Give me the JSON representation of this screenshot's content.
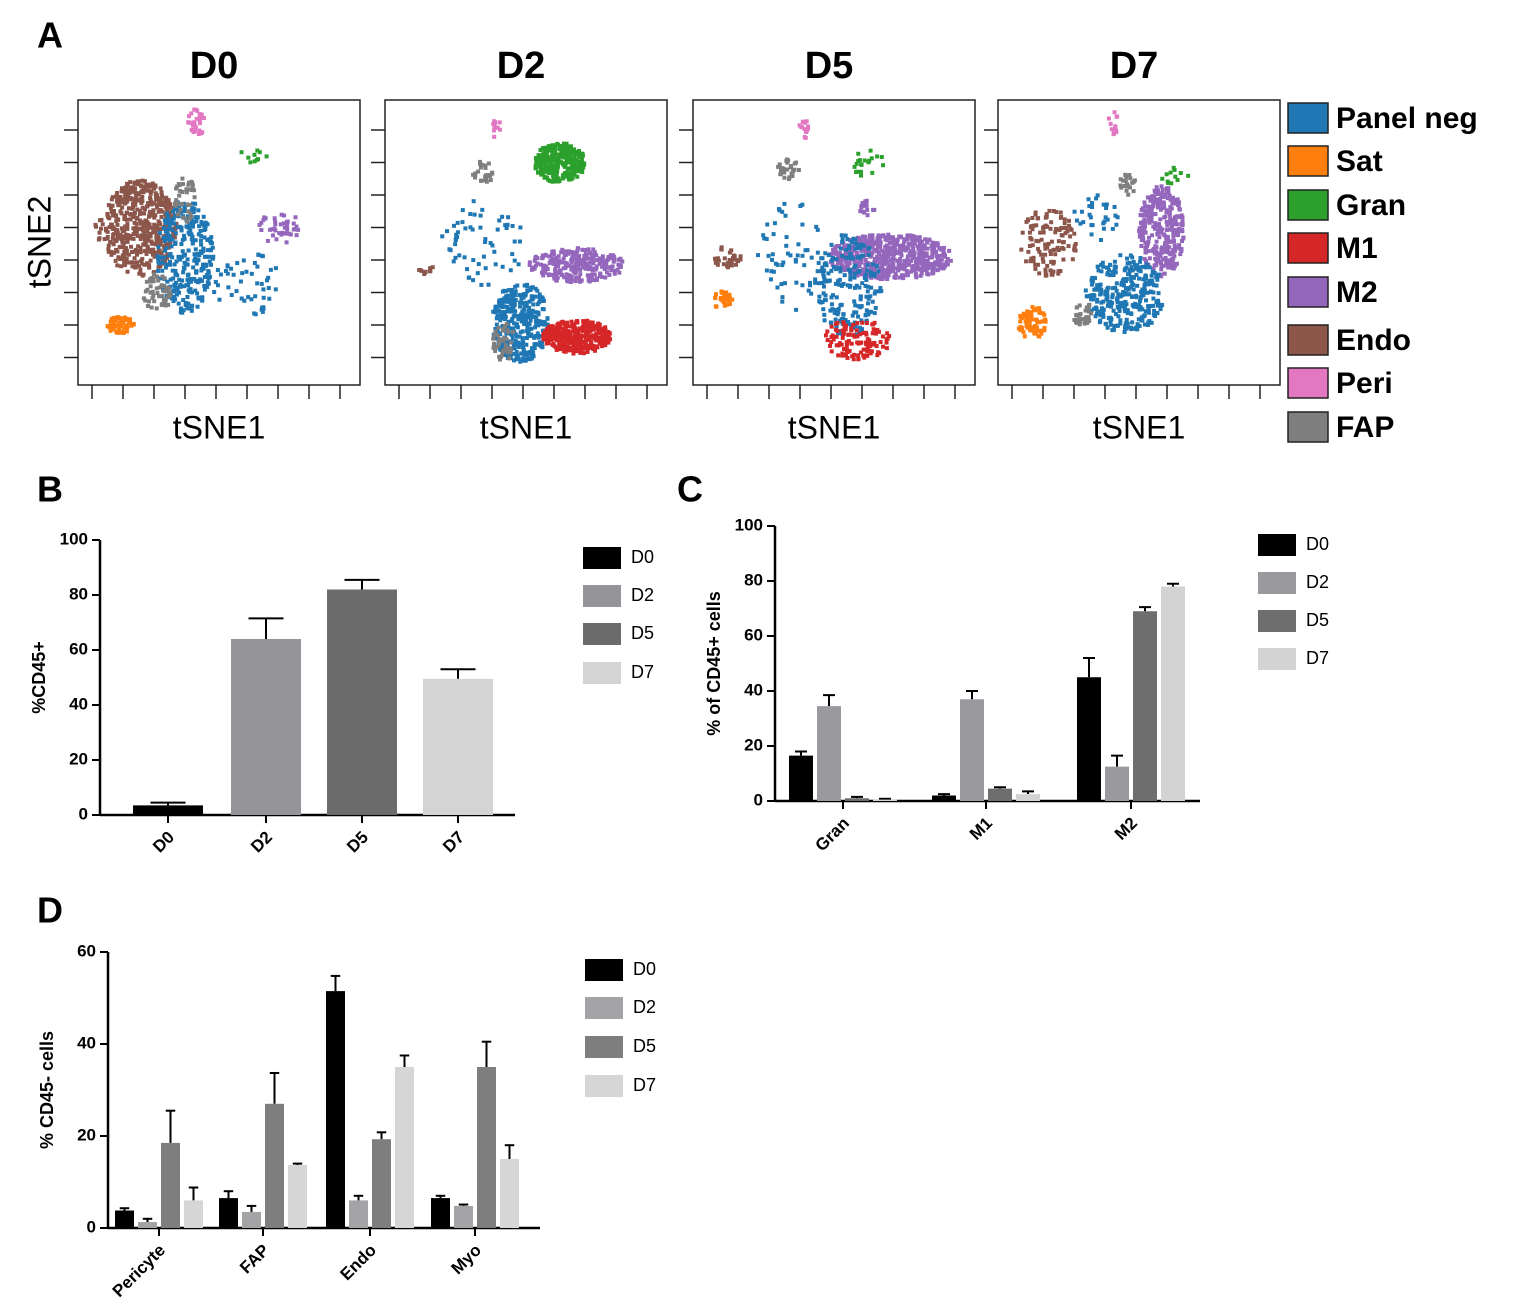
{
  "chart_data": [
    {
      "type": "tsne",
      "panel_label": "A",
      "panels": [
        "D0",
        "D2",
        "D5",
        "D7"
      ],
      "xlabel": "tSNE1",
      "ylabel": "tSNE2",
      "series": [
        {
          "name": "Panel neg",
          "color": "#1f77b4"
        },
        {
          "name": "Sat",
          "color": "#ff7f0e"
        },
        {
          "name": "Gran",
          "color": "#2ca02c"
        },
        {
          "name": "M1",
          "color": "#d62728"
        },
        {
          "name": "M2",
          "color": "#9467bd"
        },
        {
          "name": "Endo",
          "color": "#8c564b"
        },
        {
          "name": "Peri",
          "color": "#e377c2"
        },
        {
          "name": "FAP",
          "color": "#7f7f7f"
        }
      ]
    },
    {
      "type": "bar",
      "panel_label": "B",
      "ylabel": "%CD45+",
      "categories": [
        "D0",
        "D2",
        "D5",
        "D7"
      ],
      "values": [
        3.5,
        64,
        82,
        49.5
      ],
      "errors": [
        1,
        7.5,
        3.5,
        3.5
      ],
      "colors": [
        "#000000",
        "#959599",
        "#6b6b6b",
        "#d4d4d4"
      ],
      "ylim": [
        0,
        100
      ],
      "yticks": [
        0,
        20,
        40,
        60,
        80,
        100
      ]
    },
    {
      "type": "grouped_bar",
      "panel_label": "C",
      "ylabel": "% of CD45+ cells",
      "categories": [
        "Gran",
        "M1",
        "M2"
      ],
      "series": [
        {
          "name": "D0",
          "color": "#000000",
          "values": [
            16.5,
            2,
            45
          ],
          "errors": [
            1.5,
            0.5,
            7
          ]
        },
        {
          "name": "D2",
          "color": "#9a9a9e",
          "values": [
            34.5,
            37,
            12.5
          ],
          "errors": [
            4,
            3,
            4
          ]
        },
        {
          "name": "D5",
          "color": "#6e6e6e",
          "values": [
            1,
            4.5,
            69
          ],
          "errors": [
            0.5,
            0.5,
            1.5
          ]
        },
        {
          "name": "D7",
          "color": "#d3d3d3",
          "values": [
            0.5,
            2.5,
            78
          ],
          "errors": [
            0.3,
            1,
            1
          ]
        }
      ],
      "ylim": [
        0,
        100
      ],
      "yticks": [
        0,
        20,
        40,
        60,
        80,
        100
      ]
    },
    {
      "type": "grouped_bar",
      "panel_label": "D",
      "ylabel": "% CD45- cells",
      "categories": [
        "Pericyte",
        "FAP",
        "Endo",
        "Myo"
      ],
      "series": [
        {
          "name": "D0",
          "color": "#000000",
          "values": [
            3.8,
            6.5,
            51.5,
            6.5
          ],
          "errors": [
            0.5,
            1.5,
            3.3,
            0.5
          ]
        },
        {
          "name": "D2",
          "color": "#a4a4a6",
          "values": [
            1.3,
            3.5,
            6,
            4.8
          ],
          "errors": [
            0.7,
            1.3,
            1,
            0.3
          ]
        },
        {
          "name": "D5",
          "color": "#7e7e7e",
          "values": [
            18.5,
            27,
            19.3,
            35
          ],
          "errors": [
            7,
            6.7,
            1.5,
            5.5
          ]
        },
        {
          "name": "D7",
          "color": "#d6d6d6",
          "values": [
            6,
            13.7,
            35,
            15
          ],
          "errors": [
            2.8,
            0.3,
            2.5,
            3
          ]
        }
      ],
      "ylim": [
        0,
        60
      ],
      "yticks": [
        0,
        20,
        40,
        60
      ]
    }
  ]
}
